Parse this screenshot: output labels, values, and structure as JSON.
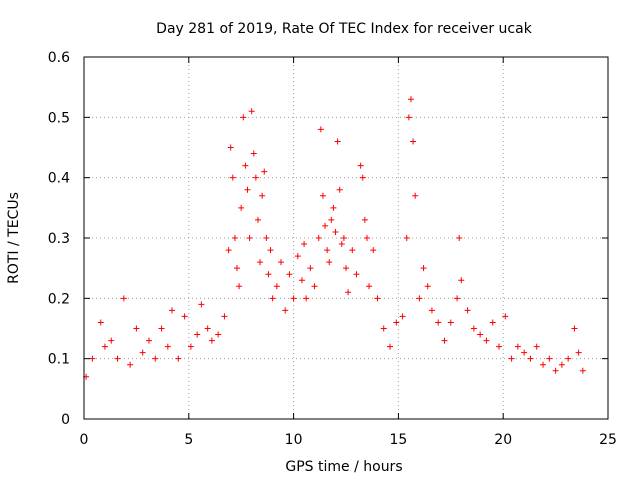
{
  "chart_data": {
    "type": "scatter",
    "title": "Day 281 of 2019, Rate Of TEC Index for receiver ucak",
    "xlabel": "GPS time / hours",
    "ylabel": "ROTI / TECUs",
    "xlim": [
      0,
      25
    ],
    "ylim": [
      0,
      0.6
    ],
    "xticks": [
      "0",
      "5",
      "10",
      "15",
      "20",
      "25"
    ],
    "yticks": [
      "0",
      "0.1",
      "0.2",
      "0.3",
      "0.4",
      "0.5",
      "0.6"
    ],
    "grid": true,
    "marker": "+",
    "color": "#ff0000",
    "series": [
      {
        "name": "ROTI",
        "x": [
          0.1,
          0.4,
          0.8,
          1.0,
          1.3,
          1.6,
          1.9,
          2.2,
          2.5,
          2.8,
          3.1,
          3.4,
          3.7,
          4.0,
          4.2,
          4.5,
          4.8,
          5.1,
          5.4,
          5.6,
          5.9,
          6.1,
          6.4,
          6.7,
          6.9,
          7.0,
          7.1,
          7.2,
          7.3,
          7.4,
          7.5,
          7.6,
          7.7,
          7.8,
          7.9,
          8.0,
          8.1,
          8.2,
          8.3,
          8.4,
          8.5,
          8.6,
          8.7,
          8.8,
          8.9,
          9.0,
          9.2,
          9.4,
          9.6,
          9.8,
          10.0,
          10.2,
          10.4,
          10.5,
          10.6,
          10.8,
          11.0,
          11.2,
          11.3,
          11.4,
          11.5,
          11.6,
          11.7,
          11.8,
          11.9,
          12.0,
          12.1,
          12.2,
          12.3,
          12.4,
          12.5,
          12.6,
          12.8,
          13.0,
          13.2,
          13.3,
          13.4,
          13.5,
          13.6,
          13.8,
          14.0,
          14.3,
          14.6,
          14.9,
          15.2,
          15.4,
          15.5,
          15.6,
          15.7,
          15.8,
          16.0,
          16.2,
          16.4,
          16.6,
          16.9,
          17.2,
          17.5,
          17.8,
          17.9,
          18.0,
          18.3,
          18.6,
          18.9,
          19.2,
          19.5,
          19.8,
          20.1,
          20.4,
          20.7,
          21.0,
          21.3,
          21.6,
          21.9,
          22.2,
          22.5,
          22.8,
          23.1,
          23.4,
          23.6,
          23.8
        ],
        "y": [
          0.07,
          0.1,
          0.16,
          0.12,
          0.13,
          0.1,
          0.2,
          0.09,
          0.15,
          0.11,
          0.13,
          0.1,
          0.15,
          0.12,
          0.18,
          0.1,
          0.17,
          0.12,
          0.14,
          0.19,
          0.15,
          0.13,
          0.14,
          0.17,
          0.28,
          0.45,
          0.4,
          0.3,
          0.25,
          0.22,
          0.35,
          0.5,
          0.42,
          0.38,
          0.3,
          0.51,
          0.44,
          0.4,
          0.33,
          0.26,
          0.37,
          0.41,
          0.3,
          0.24,
          0.28,
          0.2,
          0.22,
          0.26,
          0.18,
          0.24,
          0.2,
          0.27,
          0.23,
          0.29,
          0.2,
          0.25,
          0.22,
          0.3,
          0.48,
          0.37,
          0.32,
          0.28,
          0.26,
          0.33,
          0.35,
          0.31,
          0.46,
          0.38,
          0.29,
          0.3,
          0.25,
          0.21,
          0.28,
          0.24,
          0.42,
          0.4,
          0.33,
          0.3,
          0.22,
          0.28,
          0.2,
          0.15,
          0.12,
          0.16,
          0.17,
          0.3,
          0.5,
          0.53,
          0.46,
          0.37,
          0.2,
          0.25,
          0.22,
          0.18,
          0.16,
          0.13,
          0.16,
          0.2,
          0.3,
          0.23,
          0.18,
          0.15,
          0.14,
          0.13,
          0.16,
          0.12,
          0.17,
          0.1,
          0.12,
          0.11,
          0.1,
          0.12,
          0.09,
          0.1,
          0.08,
          0.09,
          0.1,
          0.15,
          0.11,
          0.08
        ]
      }
    ]
  }
}
